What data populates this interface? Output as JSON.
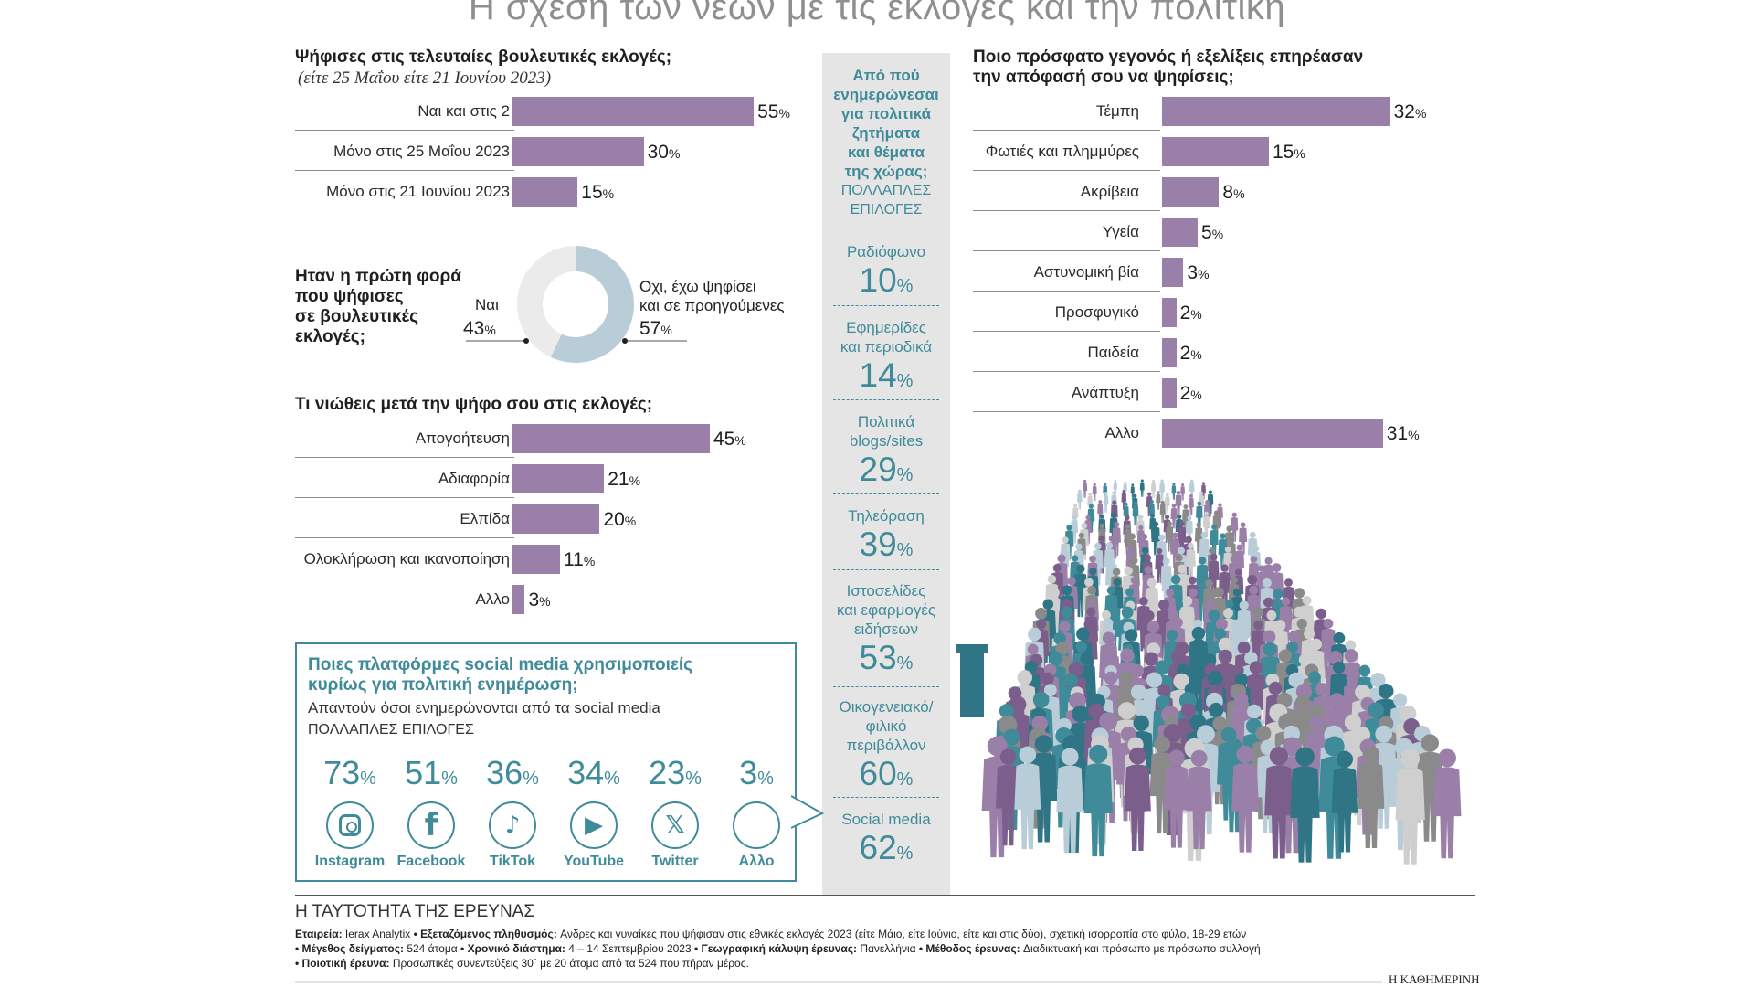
{
  "page_title": "Η σχέση των νέων με τις εκλογές και την πολιτική",
  "q1": {
    "title": "Ψήφισες στις τελευταίες βουλευτικές εκλογές;",
    "subtitle": "(είτε 25 Μαΐου είτε 21 Ιουνίου 2023)"
  },
  "q2": {
    "title_lines": [
      "Ηταν η πρώτη φορά",
      "που ψήφισες",
      "σε βουλευτικές",
      "εκλογές;"
    ],
    "yes_label": "Ναι",
    "yes_value": "43",
    "no_label_lines": [
      "Οχι, έχω ψηφίσει",
      "και σε προηγούμενες"
    ],
    "no_value": "57",
    "pct": "%"
  },
  "q3": {
    "title": "Τι νιώθεις μετά την ψήφο σου στις εκλογές;"
  },
  "central": {
    "title_lines": [
      "Από πού",
      "ενημερώνεσαι",
      "για πολιτικά",
      "ζητήματα",
      "και θέματα",
      "της χώρας;"
    ],
    "note_lines": [
      "ΠΟΛΛΑΠΛΕΣ",
      "ΕΠΙΛΟΓΕΣ"
    ]
  },
  "q5": {
    "title_lines": [
      "Ποιο πρόσφατο γεγονός ή εξελίξεις επηρέασαν",
      "την απόφασή σου να ψηφίσεις;"
    ]
  },
  "social": {
    "title_lines": [
      "Ποιες πλατφόρμες social media χρησιμοποιείς",
      "κυρίως για πολιτική ενημέρωση;"
    ],
    "subtitle": "Απαντούν όσοι ενημερώνονται από τα social media",
    "note": "ΠΟΛΛΑΠΛΕΣ ΕΠΙΛΟΓΕΣ"
  },
  "footer": {
    "heading": "Η ΤΑΥΤΟΤΗΤΑ ΤΗΣ ΕΡΕΥΝΑΣ",
    "line1": [
      [
        "Εταιρεία: ",
        "Ierax Analytix"
      ],
      [
        " • Εξεταζόμενος πληθυσμός: ",
        "Ανδρες και γυναίκες που ψήφισαν στις εθνικές εκλογές 2023 (είτε Μάιο, είτε Ιούνιο, είτε και στις δύο), σχετική ισορροπία στο φύλο, 18-29 ετών"
      ]
    ],
    "line2": [
      [
        "• Μέγεθος δείγματος: ",
        "524 άτομα"
      ],
      [
        " • Χρονικό διάστημα: ",
        "4 – 14 Σεπτεμβρίου 2023"
      ],
      [
        " • Γεωγραφική κάλυψη έρευνας: ",
        "Πανελλήνια"
      ],
      [
        " • Μέθοδος έρευνας: ",
        "Διαδικτυακή και πρόσωπο με πρόσωπο συλλογή"
      ]
    ],
    "line3": [
      [
        "• Ποιοτική έρευνα: ",
        "Προσωπικές συνεντεύξεις 30΄ με 20 άτομα από τα 524 που πήραν μέρος."
      ]
    ],
    "brand": "Η ΚΑΘΗΜΕΡΙΝΗ"
  },
  "colors": {
    "purple": "#9a7fa8",
    "teal": "#3f8b9a",
    "donut_yes": "#ebebeb",
    "donut_no": "#b9cdd8",
    "panel": "#e5e5e5"
  },
  "chart_data": [
    {
      "id": "voted",
      "type": "bar",
      "unit": "%",
      "categories": [
        "Ναι και στις 2",
        "Μόνο στις 25 Μαΐου 2023",
        "Μόνο στις 21 Ιουνίου 2023"
      ],
      "values": [
        55,
        30,
        15
      ]
    },
    {
      "id": "first-time",
      "type": "pie",
      "unit": "%",
      "categories": [
        "Ναι",
        "Οχι, έχω ψηφίσει και σε προηγούμενες"
      ],
      "values": [
        43,
        57
      ]
    },
    {
      "id": "feeling",
      "type": "bar",
      "unit": "%",
      "categories": [
        "Απογοήτευση",
        "Αδιαφορία",
        "Ελπίδα",
        "Ολοκλήρωση και ικανοποίηση",
        "Αλλο"
      ],
      "values": [
        45,
        21,
        20,
        11,
        3
      ]
    },
    {
      "id": "sources",
      "type": "table",
      "unit": "%",
      "categories": [
        [
          "Ραδιόφωνο"
        ],
        [
          "Εφημερίδες",
          "και περιοδικά"
        ],
        [
          "Πολιτικά",
          "blogs/sites"
        ],
        [
          "Τηλεόραση"
        ],
        [
          "Ιστοσελίδες",
          "και εφαρμογές",
          "ειδήσεων"
        ],
        [
          "Οικογενειακό/",
          "φιλικό",
          "περιβάλλον"
        ],
        [
          "Social media"
        ]
      ],
      "values": [
        10,
        14,
        29,
        39,
        53,
        60,
        62
      ]
    },
    {
      "id": "events",
      "type": "bar",
      "unit": "%",
      "categories": [
        "Τέμπη",
        "Φωτιές και πλημμύρες",
        "Ακρίβεια",
        "Υγεία",
        "Αστυνομική βία",
        "Προσφυγικό",
        "Παιδεία",
        "Ανάπτυξη",
        "Αλλο"
      ],
      "values": [
        32,
        15,
        8,
        5,
        3,
        2,
        2,
        2,
        31
      ]
    },
    {
      "id": "social-platforms",
      "type": "table",
      "unit": "%",
      "categories": [
        "Instagram",
        "Facebook",
        "TikTok",
        "YouTube",
        "Twitter",
        "Αλλο"
      ],
      "values": [
        73,
        51,
        36,
        34,
        23,
        3
      ]
    }
  ]
}
